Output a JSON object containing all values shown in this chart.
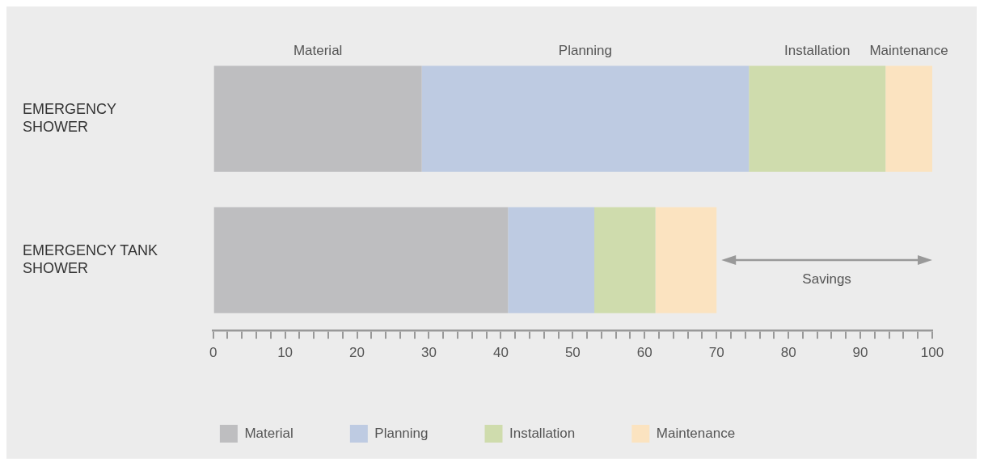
{
  "chart_data": {
    "type": "bar",
    "orientation": "horizontal",
    "stacked": true,
    "categories": [
      "EMERGENCY SHOWER",
      "EMERGENCY TANK SHOWER"
    ],
    "series": [
      {
        "name": "Material",
        "color": "#bebec0",
        "values": [
          29,
          41
        ]
      },
      {
        "name": "Planning",
        "color": "#becbe2",
        "values": [
          45.5,
          12
        ]
      },
      {
        "name": "Installation",
        "color": "#cfdcad",
        "values": [
          19,
          8.5
        ]
      },
      {
        "name": "Maintenance",
        "color": "#fbe3c0",
        "values": [
          6.5,
          8.5
        ]
      }
    ],
    "xlim": [
      0,
      100
    ],
    "xticks": [
      0,
      {
        "value": 2,
        "label": null
      },
      {
        "value": 4,
        "label": null
      },
      {
        "value": 6,
        "label": null
      },
      {
        "value": 8,
        "label": null
      },
      10,
      {
        "value": 12,
        "label": null
      },
      {
        "value": 14,
        "label": null
      },
      {
        "value": 16,
        "label": null
      },
      {
        "value": 18,
        "label": null
      },
      20,
      {
        "value": 22,
        "label": null
      },
      {
        "value": 24,
        "label": null
      },
      {
        "value": 26,
        "label": null
      },
      {
        "value": 28,
        "label": null
      },
      30,
      {
        "value": 32,
        "label": null
      },
      {
        "value": 34,
        "label": null
      },
      {
        "value": 36,
        "label": null
      },
      {
        "value": 38,
        "label": null
      },
      40,
      {
        "value": 42,
        "label": null
      },
      {
        "value": 44,
        "label": null
      },
      {
        "value": 46,
        "label": null
      },
      {
        "value": 48,
        "label": null
      },
      50,
      {
        "value": 52,
        "label": null
      },
      {
        "value": 54,
        "label": null
      },
      {
        "value": 56,
        "label": null
      },
      {
        "value": 58,
        "label": null
      },
      60,
      {
        "value": 62,
        "label": null
      },
      {
        "value": 64,
        "label": null
      },
      {
        "value": 66,
        "label": null
      },
      {
        "value": 68,
        "label": null
      },
      70,
      {
        "value": 72,
        "label": null
      },
      {
        "value": 74,
        "label": null
      },
      {
        "value": 76,
        "label": null
      },
      {
        "value": 78,
        "label": null
      },
      80,
      {
        "value": 82,
        "label": null
      },
      {
        "value": 84,
        "label": null
      },
      {
        "value": 86,
        "label": null
      },
      {
        "value": 88,
        "label": null
      },
      90,
      {
        "value": 92,
        "label": null
      },
      {
        "value": 94,
        "label": null
      },
      {
        "value": 96,
        "label": null
      },
      {
        "value": 98,
        "label": null
      },
      100
    ],
    "annotations": [
      "Savings"
    ],
    "grid": false,
    "legend": "bottom"
  }
}
